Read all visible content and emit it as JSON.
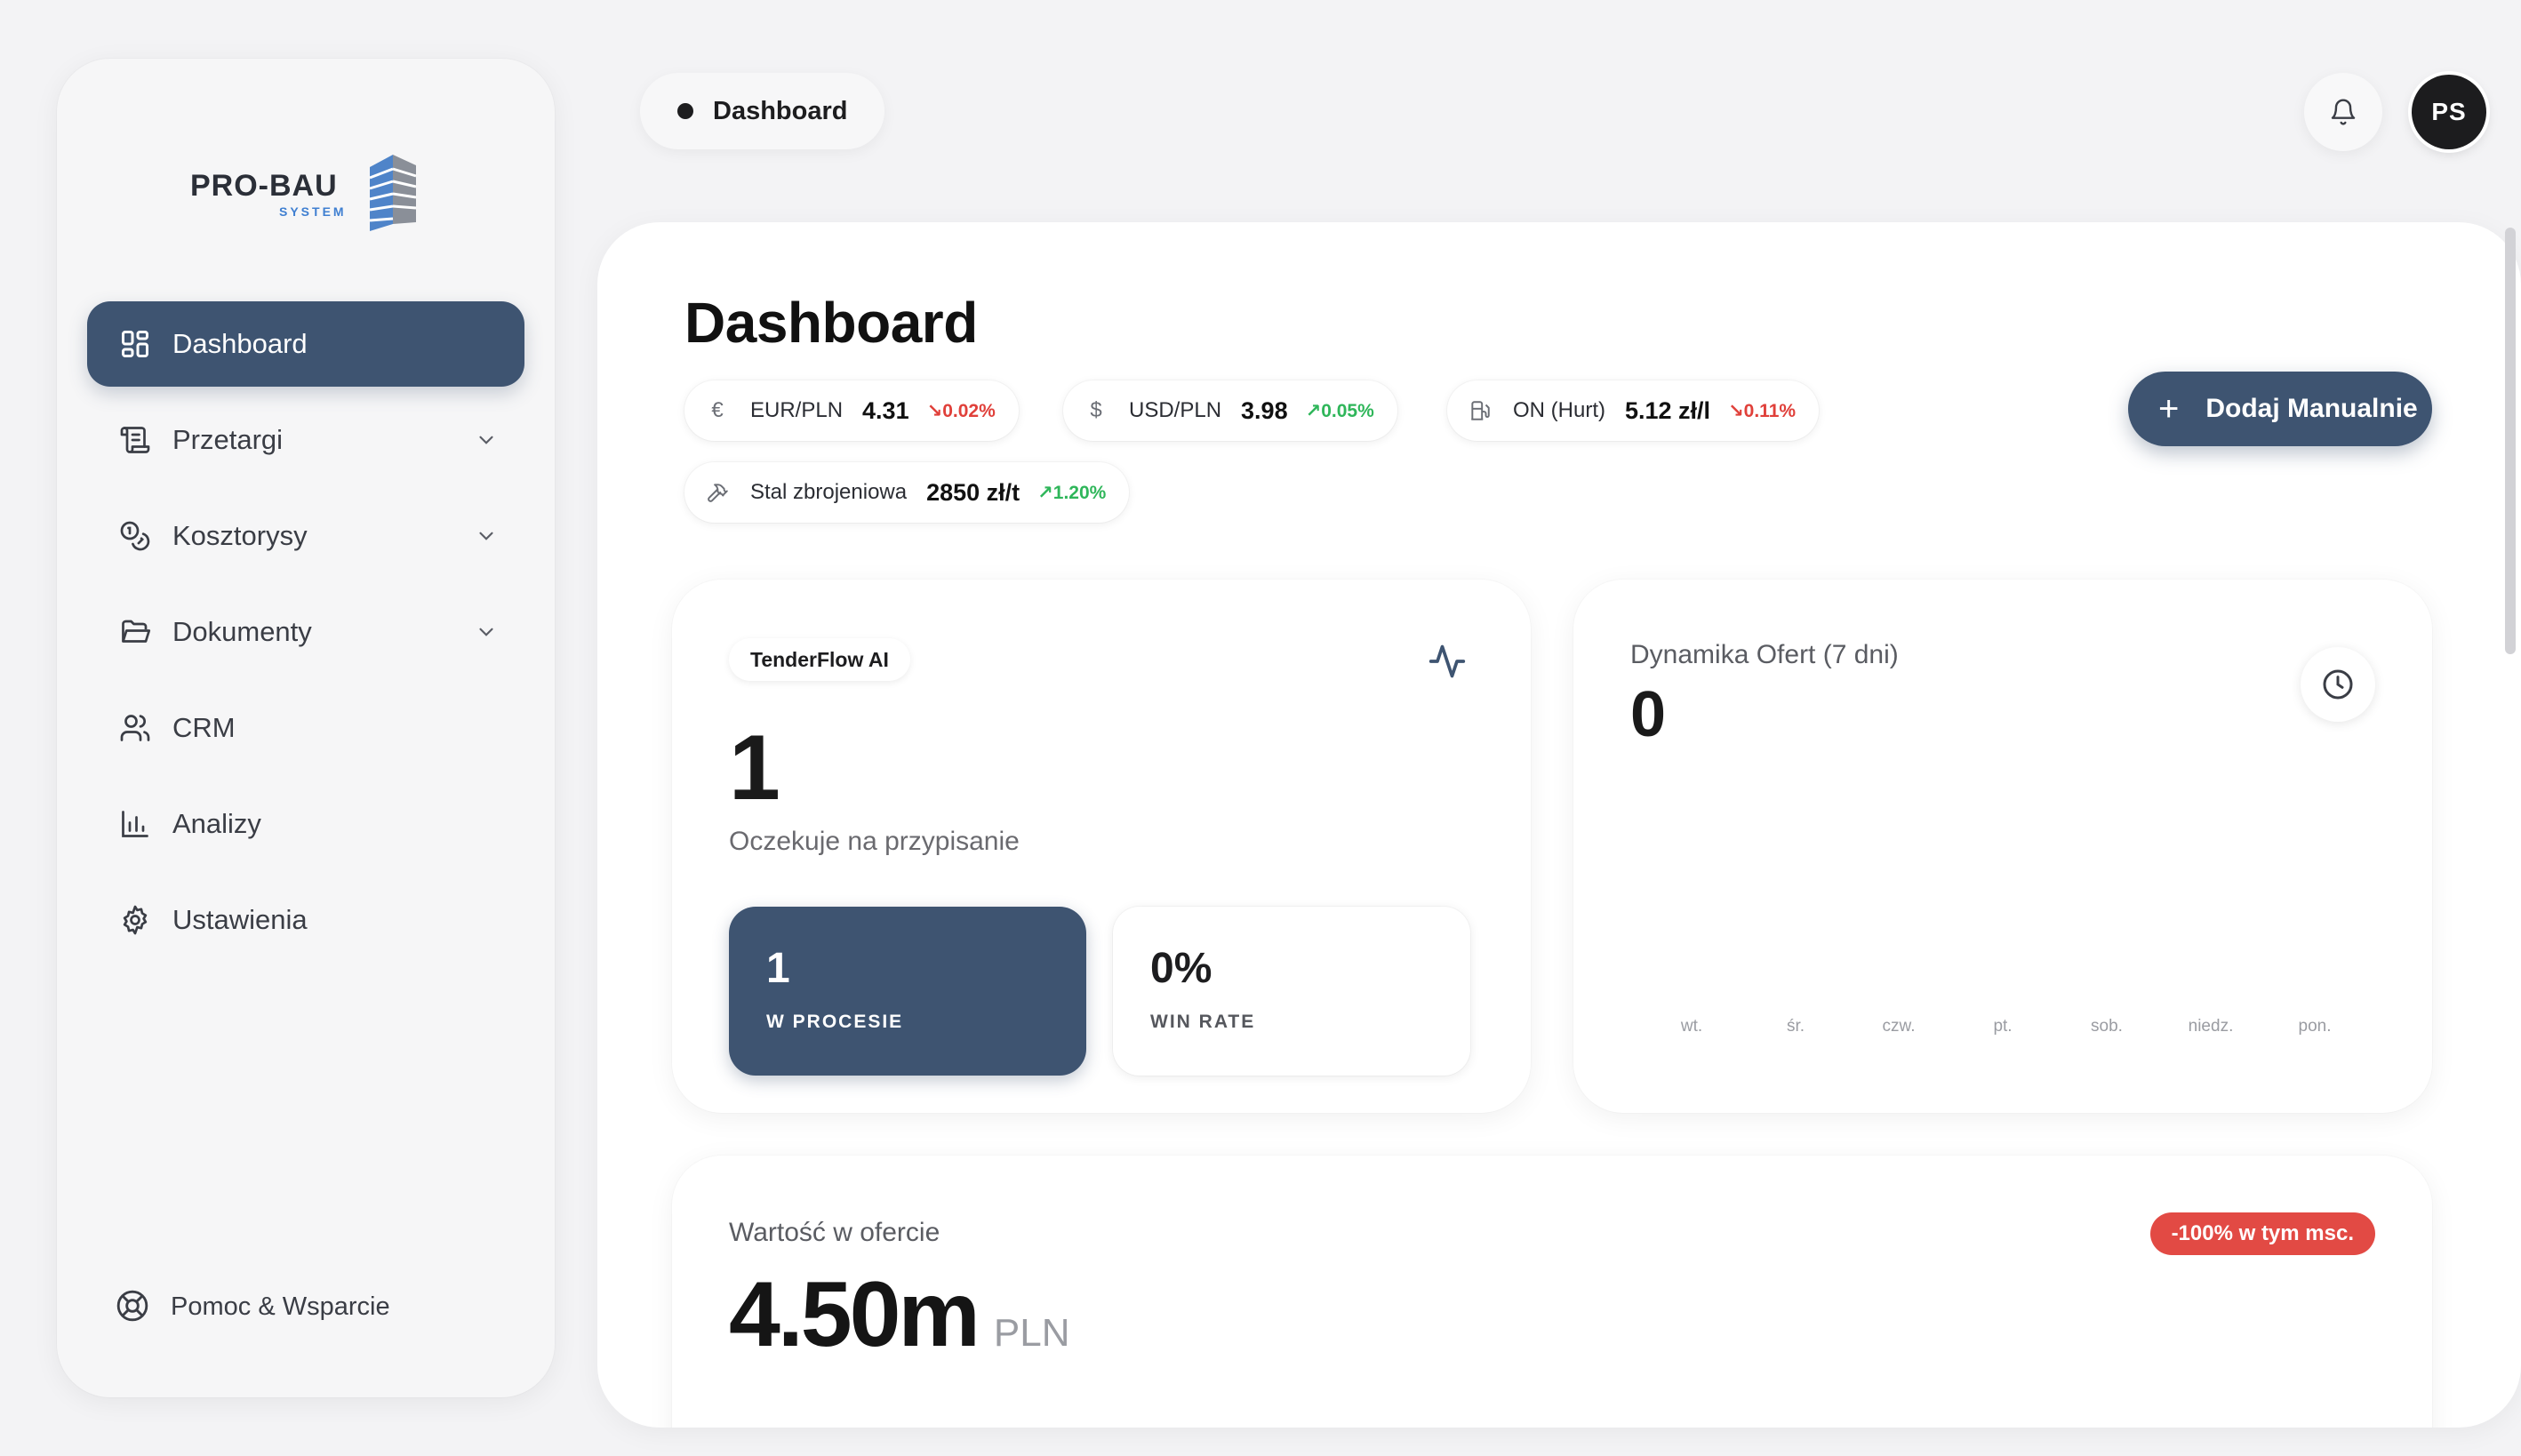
{
  "brand": {
    "logo_text": "PRO-BAU",
    "logo_sub": "SYSTEM",
    "colors": {
      "primary": "#3e5471",
      "down": "#e0403a",
      "up": "#2fb65a",
      "badge": "#e24a44"
    }
  },
  "sidebar": {
    "items": [
      {
        "label": "Dashboard",
        "icon": "grid-icon",
        "active": true
      },
      {
        "label": "Przetargi",
        "icon": "scroll-icon",
        "expandable": true
      },
      {
        "label": "Kosztorysy",
        "icon": "coins-icon",
        "expandable": true
      },
      {
        "label": "Dokumenty",
        "icon": "folder-icon",
        "expandable": true
      },
      {
        "label": "CRM",
        "icon": "users-icon"
      },
      {
        "label": "Analizy",
        "icon": "bar-chart-icon"
      },
      {
        "label": "Ustawienia",
        "icon": "gear-icon"
      }
    ],
    "help_label": "Pomoc & Wsparcie"
  },
  "header": {
    "breadcrumb": "Dashboard",
    "avatar_initials": "PS"
  },
  "main": {
    "title": "Dashboard",
    "add_button_label": "Dodaj Manualnie",
    "tickers": [
      {
        "icon": "euro-icon",
        "symbol": "€",
        "name": "EUR/PLN",
        "value": "4.31",
        "change": "0.02%",
        "direction": "down"
      },
      {
        "icon": "dollar-icon",
        "symbol": "$",
        "name": "USD/PLN",
        "value": "3.98",
        "change": "0.05%",
        "direction": "up"
      },
      {
        "icon": "fuel-icon",
        "symbol": "",
        "name": "ON (Hurt)",
        "value": "5.12 zł/l",
        "change": "0.11%",
        "direction": "down"
      },
      {
        "icon": "hammer-icon",
        "symbol": "",
        "name": "Stal zbrojeniowa",
        "value": "2850 zł/t",
        "change": "1.20%",
        "direction": "up"
      }
    ],
    "tender_card": {
      "tag": "TenderFlow AI",
      "count": "1",
      "subtitle": "Oczekuje na przypisanie",
      "stats": [
        {
          "value": "1",
          "label": "W PROCESIE"
        },
        {
          "value": "0%",
          "label": "WIN RATE"
        }
      ]
    },
    "offers_card": {
      "title": "Dynamika Ofert (7 dni)",
      "value": "0",
      "days": [
        "wt.",
        "śr.",
        "czw.",
        "pt.",
        "sob.",
        "niedz.",
        "pon."
      ]
    },
    "value_card": {
      "title": "Wartość w ofercie",
      "value": "4.50m",
      "currency": "PLN",
      "badge": "-100% w tym msc."
    }
  }
}
